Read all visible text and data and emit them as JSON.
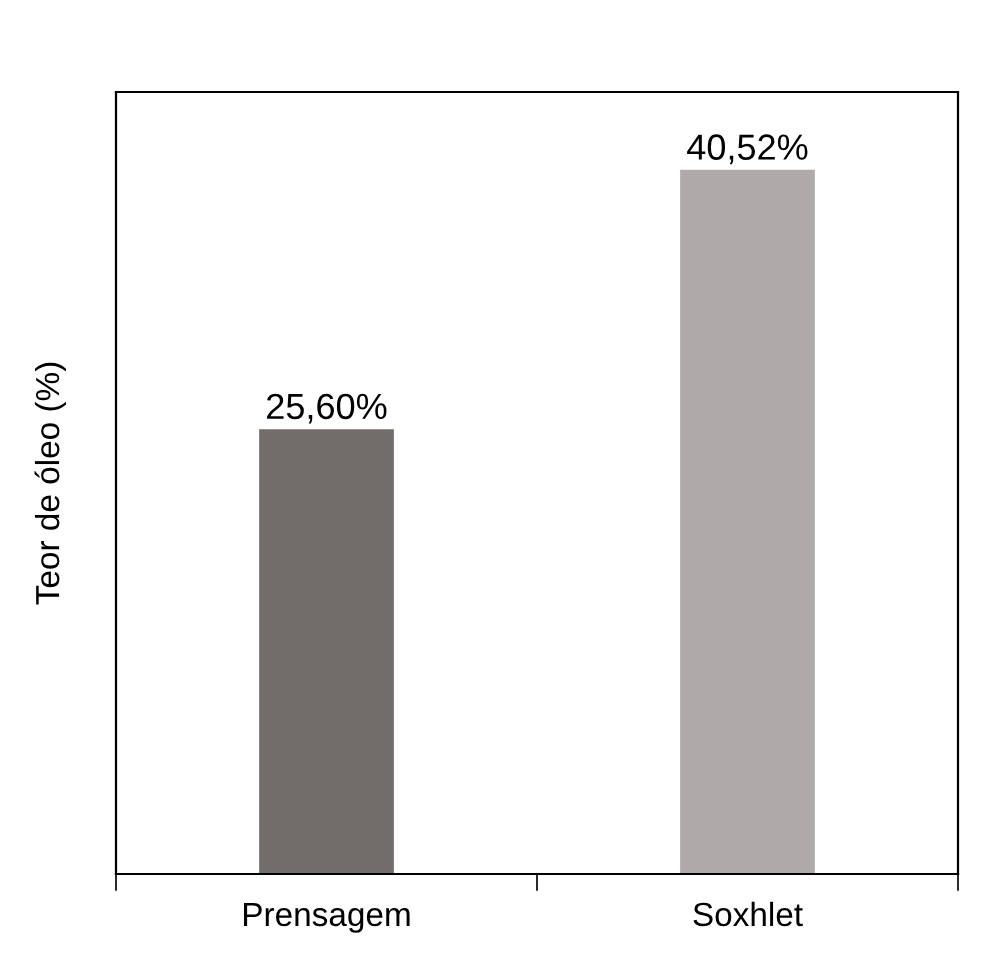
{
  "chart_data": {
    "type": "bar",
    "ylabel": "Teor de óleo (%)",
    "categories": [
      "Prensagem",
      "Soxhlet"
    ],
    "values": [
      25.6,
      40.52
    ],
    "colors": [
      "#726d6b",
      "#afaaa9"
    ],
    "value_labels": [
      "25,60%",
      "40,52%"
    ],
    "ylim": [
      0,
      45
    ],
    "tick_labels": "x",
    "grid": false,
    "legend": false
  }
}
